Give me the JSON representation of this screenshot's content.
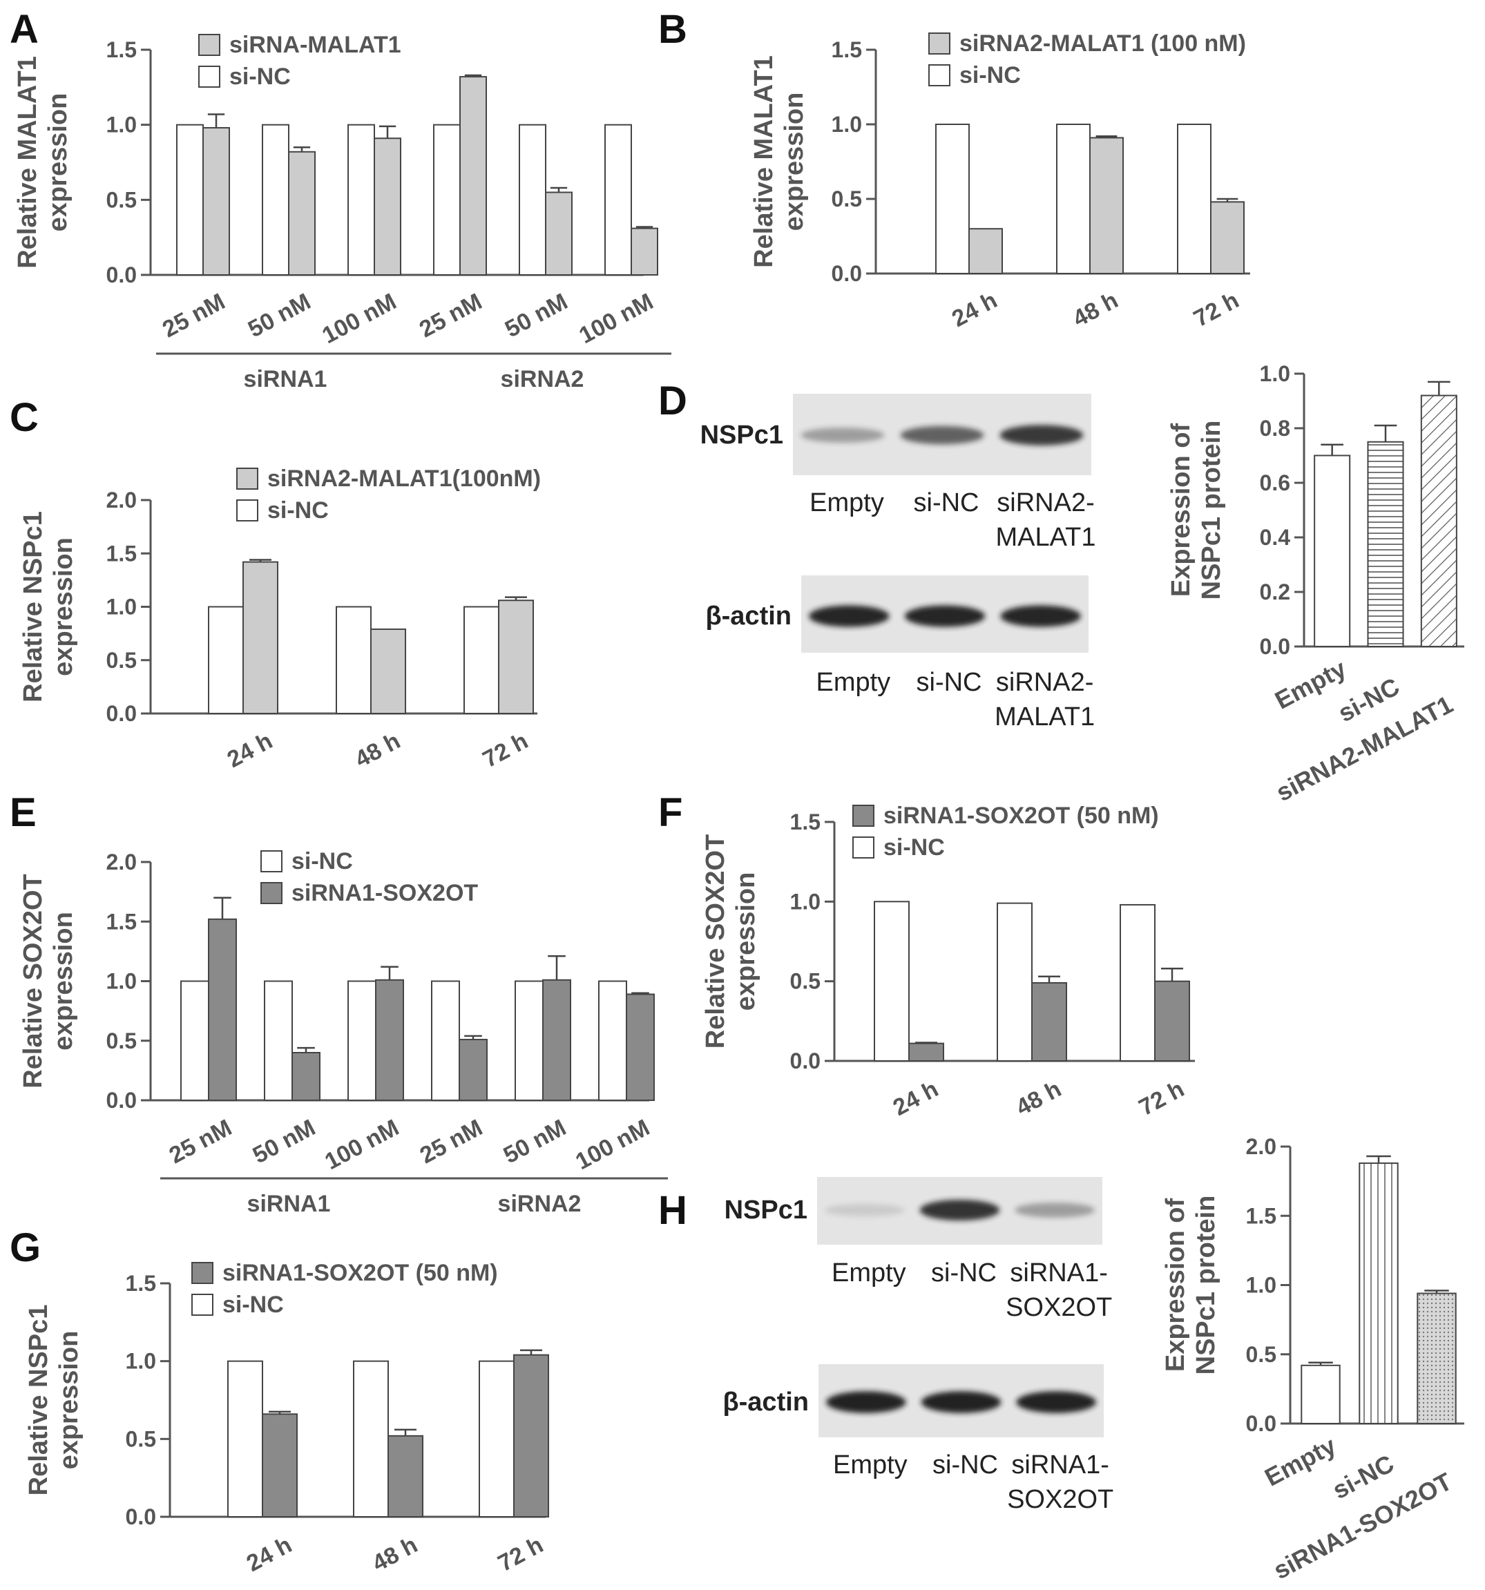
{
  "panel_letters": [
    "A",
    "B",
    "C",
    "D",
    "E",
    "F",
    "G",
    "H"
  ],
  "colors": {
    "white_bar": "#ffffff",
    "light_gray_bar": "#cccccc",
    "dark_gray_bar": "#8a8a8a",
    "axis": "#555555",
    "text": "#555555",
    "panel_letter": "#111111",
    "blot_background": "#e4e4e4",
    "blot_band": "#1a1a1a"
  },
  "chart_data": [
    {
      "panel": "A",
      "type": "bar",
      "ylabel": [
        "Relative MALAT1",
        "expression"
      ],
      "ylim": [
        0,
        1.5
      ],
      "yticks": [
        "0.0",
        "0.5",
        "1.0",
        "1.5"
      ],
      "categories": [
        "25 nM",
        "50 nM",
        "100 nM",
        "25 nM",
        "50 nM",
        "100 nM"
      ],
      "groups": [
        {
          "label": "siRNA1",
          "from": 0,
          "to": 2
        },
        {
          "label": "siRNA2",
          "from": 3,
          "to": 5
        }
      ],
      "legend_position": "top-center",
      "legend_order": [
        1,
        0
      ],
      "series": [
        {
          "name": "si-NC",
          "values": [
            1.0,
            1.0,
            1.0,
            1.0,
            1.0,
            1.0
          ],
          "errors": [
            0,
            0,
            0,
            0,
            0,
            0
          ],
          "fill": "white"
        },
        {
          "name": "siRNA-MALAT1",
          "values": [
            0.98,
            0.82,
            0.91,
            1.32,
            0.55,
            0.31
          ],
          "errors": [
            0.09,
            0.03,
            0.08,
            0.01,
            0.03,
            0.01
          ],
          "fill": "light-gray"
        }
      ]
    },
    {
      "panel": "B",
      "type": "bar",
      "ylabel": [
        "Relative MALAT1",
        "expression"
      ],
      "ylim": [
        0,
        1.5
      ],
      "yticks": [
        "0.0",
        "0.5",
        "1.0",
        "1.5"
      ],
      "categories": [
        "24 h",
        "48 h",
        "72 h"
      ],
      "legend_position": "top-center",
      "legend_order": [
        1,
        0
      ],
      "series": [
        {
          "name": "si-NC",
          "values": [
            1.0,
            1.0,
            1.0
          ],
          "errors": [
            0,
            0,
            0
          ],
          "fill": "white"
        },
        {
          "name": "siRNA2-MALAT1 (100 nM)",
          "values": [
            0.3,
            0.91,
            0.48
          ],
          "errors": [
            0,
            0.01,
            0.02
          ],
          "fill": "light-gray"
        }
      ]
    },
    {
      "panel": "C",
      "type": "bar",
      "ylabel": [
        "Relative NSPc1",
        "expression"
      ],
      "ylim": [
        0,
        2.0
      ],
      "yticks": [
        "0.0",
        "0.5",
        "1.0",
        "1.5",
        "2.0"
      ],
      "categories": [
        "24 h",
        "48 h",
        "72 h"
      ],
      "legend_position": "top-center",
      "legend_order": [
        1,
        0
      ],
      "series": [
        {
          "name": "si-NC",
          "values": [
            1.0,
            1.0,
            1.0
          ],
          "errors": [
            0,
            0,
            0
          ],
          "fill": "white"
        },
        {
          "name": "siRNA2-MALAT1(100nM)",
          "values": [
            1.42,
            0.79,
            1.06
          ],
          "errors": [
            0.02,
            0,
            0.03
          ],
          "fill": "light-gray"
        }
      ]
    },
    {
      "panel": "D",
      "type": "bar",
      "ylabel": [
        "Expression of",
        "NSPc1 protein"
      ],
      "ylim": [
        0,
        1.0
      ],
      "yticks": [
        "0.0",
        "0.2",
        "0.4",
        "0.6",
        "0.8",
        "1.0"
      ],
      "categories": [
        "Empty",
        "si-NC",
        "siRNA2-MALAT1"
      ],
      "values": [
        0.7,
        0.75,
        0.92
      ],
      "errors": [
        0.04,
        0.06,
        0.05
      ],
      "fills": [
        "white",
        "horizontal-lines",
        "diagonal-lines"
      ]
    },
    {
      "panel": "E",
      "type": "bar",
      "ylabel": [
        "Relative SOX2OT",
        "expression"
      ],
      "ylim": [
        0,
        2.0
      ],
      "yticks": [
        "0.0",
        "0.5",
        "1.0",
        "1.5",
        "2.0"
      ],
      "categories": [
        "25 nM",
        "50 nM",
        "100 nM",
        "25 nM",
        "50 nM",
        "100 nM"
      ],
      "groups": [
        {
          "label": "siRNA1",
          "from": 0,
          "to": 2
        },
        {
          "label": "siRNA2",
          "from": 3,
          "to": 5
        }
      ],
      "legend_position": "top-center",
      "legend_order": [
        0,
        1
      ],
      "series": [
        {
          "name": "si-NC",
          "values": [
            1.0,
            1.0,
            1.0,
            1.0,
            1.0,
            1.0
          ],
          "errors": [
            0,
            0,
            0,
            0,
            0,
            0
          ],
          "fill": "white"
        },
        {
          "name": "siRNA1-SOX2OT",
          "values": [
            1.52,
            0.4,
            1.01,
            0.51,
            1.01,
            0.89
          ],
          "errors": [
            0.18,
            0.04,
            0.11,
            0.03,
            0.2,
            0.01
          ],
          "fill": "dark-gray"
        }
      ]
    },
    {
      "panel": "F",
      "type": "bar",
      "ylabel": [
        "Relative SOX2OT",
        "expression"
      ],
      "ylim": [
        0,
        1.5
      ],
      "yticks": [
        "0.0",
        "0.5",
        "1.0",
        "1.5"
      ],
      "categories": [
        "24 h",
        "48 h",
        "72 h"
      ],
      "legend_position": "top-center",
      "legend_order": [
        1,
        0
      ],
      "series": [
        {
          "name": "si-NC",
          "values": [
            1.0,
            0.99,
            0.98
          ],
          "errors": [
            0,
            0,
            0
          ],
          "fill": "white"
        },
        {
          "name": "siRNA1-SOX2OT (50 nM)",
          "values": [
            0.11,
            0.49,
            0.5
          ],
          "errors": [
            0.005,
            0.04,
            0.08
          ],
          "fill": "dark-gray"
        }
      ]
    },
    {
      "panel": "G",
      "type": "bar",
      "ylabel": [
        "Relative NSPc1",
        "expression"
      ],
      "ylim": [
        0,
        1.5
      ],
      "yticks": [
        "0.0",
        "0.5",
        "1.0",
        "1.5"
      ],
      "categories": [
        "24 h",
        "48 h",
        "72 h"
      ],
      "legend_position": "top-center",
      "legend_order": [
        1,
        0
      ],
      "series": [
        {
          "name": "si-NC",
          "values": [
            1.0,
            1.0,
            1.0
          ],
          "errors": [
            0,
            0,
            0
          ],
          "fill": "white"
        },
        {
          "name": "siRNA1-SOX2OT (50 nM)",
          "values": [
            0.66,
            0.52,
            1.04
          ],
          "errors": [
            0.015,
            0.04,
            0.03
          ],
          "fill": "dark-gray"
        }
      ]
    },
    {
      "panel": "H",
      "type": "bar",
      "ylabel": [
        "Expression of",
        "NSPc1 protein"
      ],
      "ylim": [
        0,
        2.0
      ],
      "yticks": [
        "0.0",
        "0.5",
        "1.0",
        "1.5",
        "2.0"
      ],
      "categories": [
        "Empty",
        "si-NC",
        "siRNA1-SOX2OT"
      ],
      "values": [
        0.42,
        1.88,
        0.94
      ],
      "errors": [
        0.02,
        0.05,
        0.02
      ],
      "fills": [
        "white",
        "vertical-lines",
        "crosshatch"
      ]
    }
  ],
  "blots": [
    {
      "panel": "D",
      "rows": [
        {
          "protein": "NSPc1",
          "intensities": [
            0.35,
            0.65,
            0.85
          ],
          "lane_labels": [
            [
              "Empty"
            ],
            [
              "si-NC"
            ],
            [
              "siRNA2-",
              "MALAT1"
            ]
          ]
        },
        {
          "protein": "β-actin",
          "intensities": [
            0.95,
            0.95,
            0.95
          ],
          "lane_labels": [
            [
              "Empty"
            ],
            [
              "si-NC"
            ],
            [
              "siRNA2-",
              "MALAT1"
            ]
          ]
        }
      ]
    },
    {
      "panel": "H",
      "rows": [
        {
          "protein": "NSPc1",
          "intensities": [
            0.12,
            0.88,
            0.35
          ],
          "lane_labels": [
            [
              "Empty"
            ],
            [
              "si-NC"
            ],
            [
              "siRNA1-",
              "SOX2OT"
            ]
          ]
        },
        {
          "protein": "β-actin",
          "intensities": [
            0.97,
            0.97,
            0.97
          ],
          "lane_labels": [
            [
              "Empty"
            ],
            [
              "si-NC"
            ],
            [
              "siRNA1-",
              "SOX2OT"
            ]
          ]
        }
      ]
    }
  ]
}
